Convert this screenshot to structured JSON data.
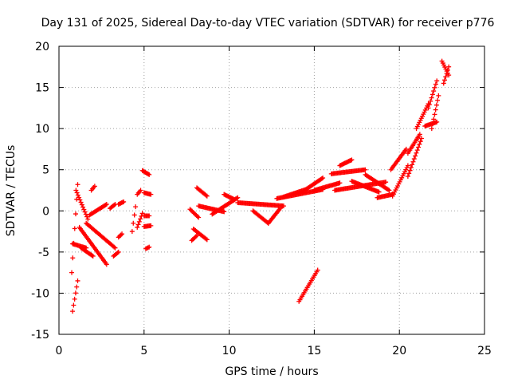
{
  "chart_data": {
    "type": "scatter",
    "title": "Day 131 of 2025, Sidereal Day-to-day VTEC variation (SDTVAR) for receiver p776",
    "xlabel": "GPS time / hours",
    "ylabel": "SDTVAR / TECUs",
    "xlim": [
      0,
      25
    ],
    "ylim": [
      -15,
      20
    ],
    "xticks": [
      "0",
      "5",
      "10",
      "15",
      "20",
      "25"
    ],
    "yticks": [
      "-15",
      "-10",
      "-5",
      "0",
      "5",
      "10",
      "15",
      "20"
    ],
    "grid": true,
    "marker": "+",
    "color": "#ff0000",
    "series_segments": [
      {
        "name": "early-dip",
        "x0": 0.8,
        "x1": 1.1,
        "y0": -12.2,
        "y1": -8.5
      },
      {
        "name": "early-rise",
        "x0": 0.75,
        "x1": 1.1,
        "y0": -7.5,
        "y1": 3.2
      },
      {
        "name": "early-arc-upper",
        "x0": 1.0,
        "x1": 1.7,
        "y0": 2.5,
        "y1": -1.0
      },
      {
        "name": "early-band",
        "x0": 0.8,
        "x1": 1.6,
        "y0": -4.0,
        "y1": -4.5
      },
      {
        "name": "early-fall",
        "x0": 1.2,
        "x1": 2.8,
        "y0": -2.0,
        "y1": -6.5
      },
      {
        "name": "early-mid",
        "x0": 1.6,
        "x1": 3.3,
        "y0": -1.5,
        "y1": -4.5
      },
      {
        "name": "early-low",
        "x0": 1.3,
        "x1": 2.0,
        "y0": -4.5,
        "y1": -5.5
      },
      {
        "name": "early-rising-tail",
        "x0": 1.8,
        "x1": 2.8,
        "y0": -0.5,
        "y1": 0.8
      },
      {
        "name": "blip-1",
        "x0": 1.9,
        "x1": 2.1,
        "y0": 2.5,
        "y1": 3.0
      },
      {
        "name": "blip-2",
        "x0": 3.0,
        "x1": 3.3,
        "y0": 0.3,
        "y1": 0.8
      },
      {
        "name": "blip-3",
        "x0": 3.5,
        "x1": 3.8,
        "y0": 0.8,
        "y1": 1.1
      },
      {
        "name": "blip-4",
        "x0": 3.2,
        "x1": 3.5,
        "y0": -5.5,
        "y1": -5.0
      },
      {
        "name": "blip-5",
        "x0": 3.5,
        "x1": 3.7,
        "y0": -3.2,
        "y1": -2.8
      },
      {
        "name": "s4-a",
        "x0": 4.3,
        "x1": 4.5,
        "y0": -2.5,
        "y1": 0.5
      },
      {
        "name": "s4-b",
        "x0": 4.6,
        "x1": 4.9,
        "y0": -2.0,
        "y1": -0.3
      },
      {
        "name": "s4-c",
        "x0": 4.6,
        "x1": 4.8,
        "y0": 2.0,
        "y1": 2.5
      },
      {
        "name": "s4-d",
        "x0": 4.9,
        "x1": 5.3,
        "y0": 4.9,
        "y1": 4.4
      },
      {
        "name": "s4-e",
        "x0": 5.1,
        "x1": 5.3,
        "y0": -4.6,
        "y1": -4.4
      },
      {
        "name": "s4-f",
        "x0": 5.0,
        "x1": 5.4,
        "y0": -1.9,
        "y1": -1.8
      },
      {
        "name": "s4-g",
        "x0": 5.0,
        "x1": 5.4,
        "y0": 2.2,
        "y1": 2.0
      },
      {
        "name": "s4-h",
        "x0": 5.0,
        "x1": 5.3,
        "y0": -0.6,
        "y1": -0.6
      },
      {
        "name": "m8-a",
        "x0": 7.7,
        "x1": 8.2,
        "y0": 0.2,
        "y1": -0.8
      },
      {
        "name": "m8-b",
        "x0": 7.9,
        "x1": 8.7,
        "y0": -2.2,
        "y1": -3.5
      },
      {
        "name": "m8-c",
        "x0": 8.1,
        "x1": 8.7,
        "y0": 2.8,
        "y1": 1.8
      },
      {
        "name": "m8-d",
        "x0": 7.8,
        "x1": 8.1,
        "y0": -3.6,
        "y1": -3.0
      },
      {
        "name": "m9",
        "x0": 8.2,
        "x1": 9.7,
        "y0": 0.6,
        "y1": -0.1
      },
      {
        "name": "m9-hump",
        "x0": 9.0,
        "x1": 10.5,
        "y0": -0.4,
        "y1": 1.6
      },
      {
        "name": "m9-top",
        "x0": 9.7,
        "x1": 10.3,
        "y0": 2.0,
        "y1": 1.4
      },
      {
        "name": "m11",
        "x0": 10.5,
        "x1": 13.2,
        "y0": 1.0,
        "y1": 0.6
      },
      {
        "name": "m11-low",
        "x0": 11.4,
        "x1": 12.3,
        "y0": 0.0,
        "y1": -1.5
      },
      {
        "name": "m11-rise",
        "x0": 12.3,
        "x1": 13.0,
        "y0": -1.5,
        "y1": 0.3
      },
      {
        "name": "m13",
        "x0": 12.8,
        "x1": 15.5,
        "y0": 1.5,
        "y1": 2.6
      },
      {
        "name": "m13-up",
        "x0": 13.2,
        "x1": 14.5,
        "y0": 1.7,
        "y1": 2.6
      },
      {
        "name": "m14-top",
        "x0": 14.5,
        "x1": 15.5,
        "y0": 2.6,
        "y1": 4.0
      },
      {
        "name": "drop-14",
        "x0": 14.1,
        "x1": 15.2,
        "y0": -11.0,
        "y1": -7.2
      },
      {
        "name": "m15",
        "x0": 15.0,
        "x1": 16.5,
        "y0": 2.5,
        "y1": 3.4
      },
      {
        "name": "m16",
        "x0": 16.0,
        "x1": 18.0,
        "y0": 4.5,
        "y1": 5.0
      },
      {
        "name": "m16-hi",
        "x0": 16.5,
        "x1": 17.2,
        "y0": 5.5,
        "y1": 6.2
      },
      {
        "name": "m16-lo",
        "x0": 16.2,
        "x1": 19.2,
        "y0": 2.5,
        "y1": 3.5
      },
      {
        "name": "m17",
        "x0": 17.2,
        "x1": 18.8,
        "y0": 3.6,
        "y1": 2.3
      },
      {
        "name": "m18",
        "x0": 18.0,
        "x1": 19.4,
        "y0": 4.4,
        "y1": 2.5
      },
      {
        "name": "m19-dip",
        "x0": 18.7,
        "x1": 19.6,
        "y0": 1.6,
        "y1": 2.0
      },
      {
        "name": "m20-up",
        "x0": 19.6,
        "x1": 20.5,
        "y0": 1.8,
        "y1": 5.5
      },
      {
        "name": "m20-up2",
        "x0": 19.5,
        "x1": 20.4,
        "y0": 5.0,
        "y1": 7.5
      },
      {
        "name": "m20-up3",
        "x0": 20.5,
        "x1": 21.2,
        "y0": 7.0,
        "y1": 9.3
      },
      {
        "name": "m21-up",
        "x0": 20.5,
        "x1": 21.3,
        "y0": 4.2,
        "y1": 8.8
      },
      {
        "name": "m21",
        "x0": 21.0,
        "x1": 21.7,
        "y0": 10.0,
        "y1": 13.0
      },
      {
        "name": "m21-b",
        "x0": 21.5,
        "x1": 22.2,
        "y0": 10.3,
        "y1": 10.8
      },
      {
        "name": "m22",
        "x0": 21.7,
        "x1": 22.2,
        "y0": 12.5,
        "y1": 15.8
      },
      {
        "name": "m22-b",
        "x0": 21.9,
        "x1": 22.3,
        "y0": 10.0,
        "y1": 14.0
      },
      {
        "name": "m22-top",
        "x0": 22.5,
        "x1": 22.9,
        "y0": 18.2,
        "y1": 16.5
      },
      {
        "name": "m22-top2",
        "x0": 22.6,
        "x1": 22.9,
        "y0": 15.5,
        "y1": 17.5
      }
    ]
  }
}
